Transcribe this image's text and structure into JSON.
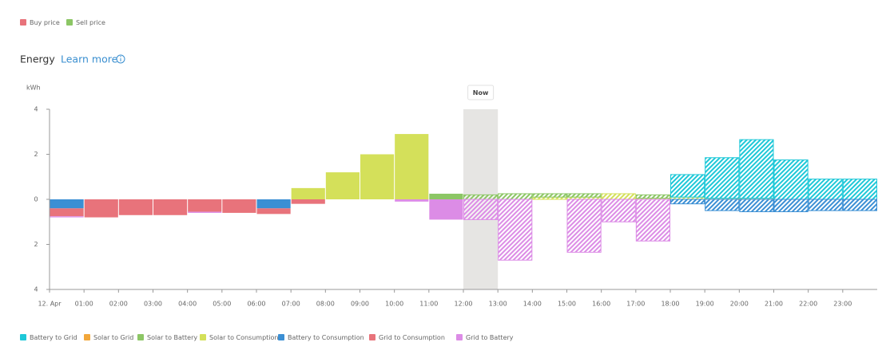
{
  "price_legend": [
    {
      "name": "Buy price",
      "color": "#e8737b"
    },
    {
      "name": "Sell price",
      "color": "#8cc665"
    }
  ],
  "header": {
    "title": "Energy",
    "link": "Learn more"
  },
  "chart_data": {
    "type": "bar",
    "y_label": "kWh",
    "categories": [
      "12. Apr",
      "01:00",
      "02:00",
      "03:00",
      "04:00",
      "05:00",
      "06:00",
      "07:00",
      "08:00",
      "09:00",
      "10:00",
      "11:00",
      "12:00",
      "13:00",
      "14:00",
      "15:00",
      "16:00",
      "17:00",
      "18:00",
      "19:00",
      "20:00",
      "21:00",
      "22:00",
      "23:00"
    ],
    "now": {
      "label": "Now",
      "category": "12:00"
    },
    "ylim": [
      -4,
      4
    ],
    "yticks": [
      4,
      2,
      0,
      {
        "value": -2,
        "label": "2"
      },
      {
        "value": -4,
        "label": "4"
      }
    ],
    "series": [
      {
        "name": "Battery to Grid",
        "color": "#1ec8d8",
        "values": [
          null,
          null,
          null,
          null,
          null,
          null,
          null,
          null,
          null,
          null,
          null,
          null,
          null,
          null,
          null,
          null,
          null,
          null,
          1.0,
          1.8,
          2.6,
          1.75,
          0.9,
          0.9
        ]
      },
      {
        "name": "Solar to Grid",
        "color": "#f2a73b",
        "values": [
          null,
          null,
          null,
          null,
          null,
          null,
          null,
          null,
          null,
          null,
          null,
          null,
          null,
          null,
          null,
          null,
          null,
          null,
          null,
          null,
          null,
          null,
          null,
          null
        ]
      },
      {
        "name": "Solar to Battery",
        "color": "#8cc665",
        "values": [
          null,
          null,
          null,
          null,
          null,
          null,
          null,
          null,
          null,
          null,
          null,
          0.25,
          0.2,
          0.25,
          0.15,
          0.15,
          null,
          0.15,
          null,
          null,
          null,
          null,
          null,
          null
        ]
      },
      {
        "name": "Solar to Consumption",
        "color": "#d4e05a",
        "values": [
          null,
          null,
          null,
          null,
          null,
          null,
          null,
          0.5,
          1.2,
          2.0,
          2.9,
          null,
          null,
          null,
          0.1,
          0.1,
          0.25,
          0.05,
          0.1,
          0.05,
          0.05,
          null,
          null,
          null
        ]
      },
      {
        "name": "Battery to Consumption",
        "color": "#3b8fd4",
        "values": [
          -0.4,
          null,
          null,
          null,
          null,
          null,
          -0.4,
          null,
          null,
          null,
          null,
          null,
          null,
          null,
          null,
          null,
          null,
          null,
          -0.2,
          -0.5,
          -0.55,
          -0.55,
          -0.5,
          -0.5
        ]
      },
      {
        "name": "Grid to Consumption",
        "color": "#e8737b",
        "values": [
          -0.35,
          -0.8,
          -0.7,
          -0.7,
          -0.55,
          -0.6,
          -0.25,
          -0.2,
          null,
          null,
          null,
          null,
          null,
          null,
          null,
          null,
          null,
          null,
          null,
          null,
          null,
          null,
          null,
          null
        ]
      },
      {
        "name": "Grid to Battery",
        "color": "#dc8ce6",
        "values": [
          -0.05,
          null,
          null,
          null,
          -0.05,
          null,
          null,
          null,
          null,
          null,
          -0.1,
          -0.9,
          -0.9,
          -2.7,
          null,
          -2.35,
          -1.0,
          -1.85,
          null,
          null,
          null,
          null,
          null,
          null
        ]
      }
    ]
  }
}
